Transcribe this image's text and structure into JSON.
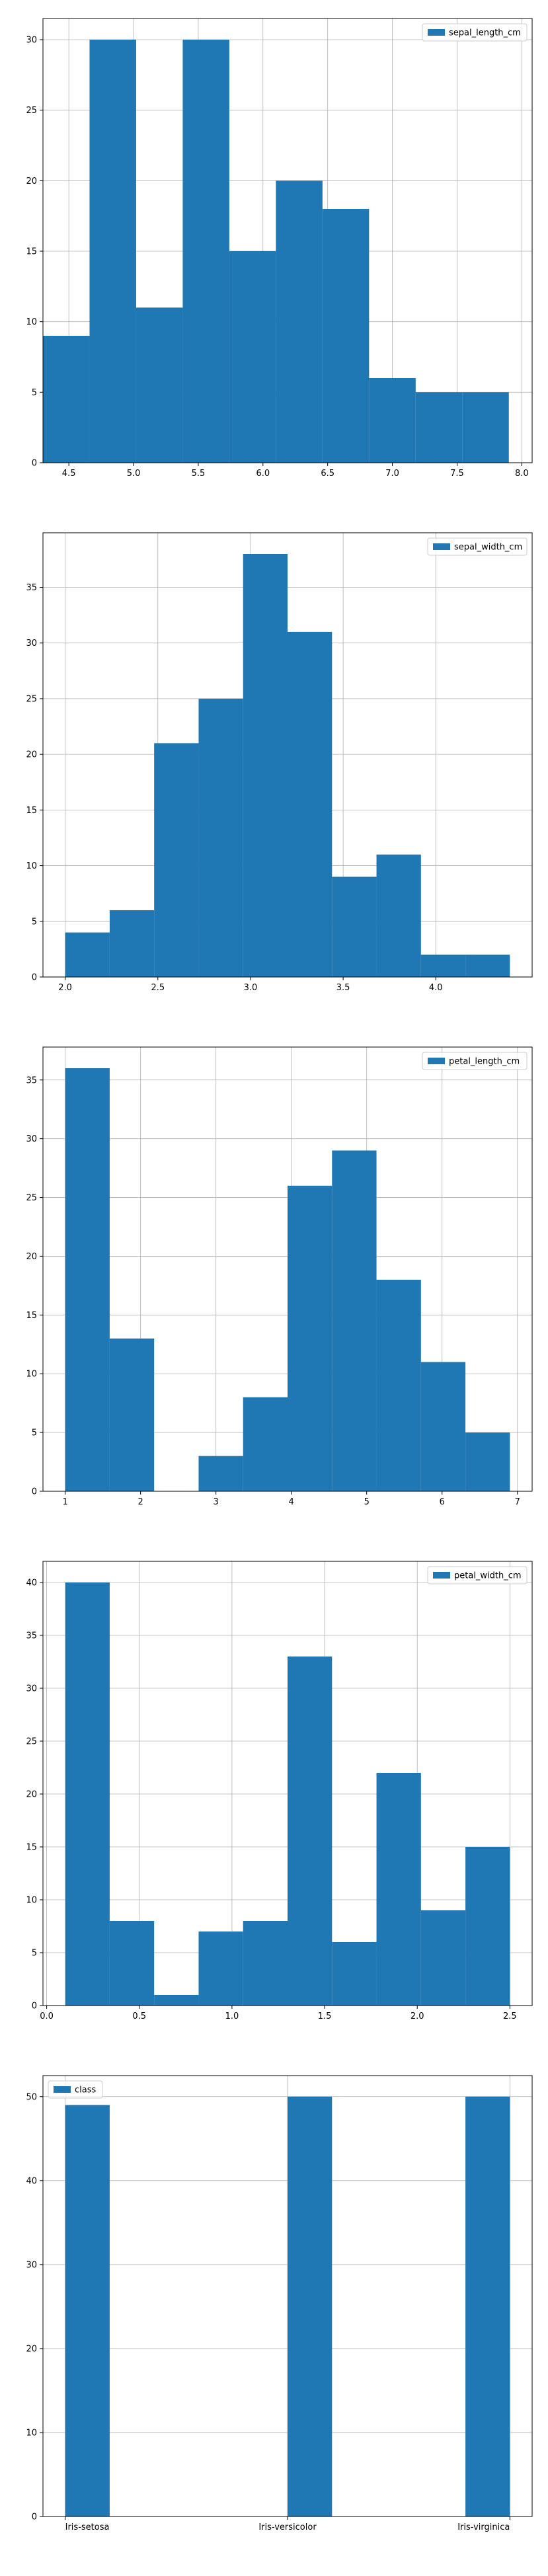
{
  "chart_data": [
    {
      "type": "bar",
      "legend": "sepal_length_cm",
      "legend_position": "upper right",
      "grid": true,
      "xlim": [
        4.3,
        8.08
      ],
      "ylim": [
        0,
        31.5
      ],
      "bin_edges": [
        4.3,
        4.66,
        5.02,
        5.38,
        5.74,
        6.1,
        6.46,
        6.82,
        7.18,
        7.54,
        7.9
      ],
      "values": [
        9,
        30,
        11,
        30,
        15,
        20,
        18,
        6,
        5,
        5
      ],
      "xticks": [
        4.5,
        5.0,
        5.5,
        6.0,
        6.5,
        7.0,
        7.5,
        8.0
      ],
      "xtick_labels": [
        "4.5",
        "5.0",
        "5.5",
        "6.0",
        "6.5",
        "7.0",
        "7.5",
        "8.0"
      ],
      "yticks": [
        0,
        5,
        10,
        15,
        20,
        25,
        30
      ],
      "ytick_labels": [
        "0",
        "5",
        "10",
        "15",
        "20",
        "25",
        "30"
      ],
      "color": "#1f77b4"
    },
    {
      "type": "bar",
      "legend": "sepal_width_cm",
      "legend_position": "upper right",
      "grid": true,
      "xlim": [
        1.88,
        4.52
      ],
      "ylim": [
        0,
        39.9
      ],
      "bin_edges": [
        2.0,
        2.24,
        2.48,
        2.72,
        2.96,
        3.2,
        3.44,
        3.68,
        3.92,
        4.16,
        4.4
      ],
      "values": [
        4,
        6,
        21,
        25,
        38,
        31,
        9,
        11,
        2,
        2
      ],
      "xticks": [
        2.0,
        2.5,
        3.0,
        3.5,
        4.0
      ],
      "xtick_labels": [
        "2.0",
        "2.5",
        "3.0",
        "3.5",
        "4.0"
      ],
      "yticks": [
        0,
        5,
        10,
        15,
        20,
        25,
        30,
        35
      ],
      "ytick_labels": [
        "0",
        "5",
        "10",
        "15",
        "20",
        "25",
        "30",
        "35"
      ],
      "color": "#1f77b4"
    },
    {
      "type": "bar",
      "legend": "petal_length_cm",
      "legend_position": "upper right",
      "grid": true,
      "xlim": [
        0.705,
        7.195
      ],
      "ylim": [
        0,
        37.8
      ],
      "bin_edges": [
        1.0,
        1.59,
        2.18,
        2.77,
        3.36,
        3.95,
        4.54,
        5.13,
        5.72,
        6.31,
        6.9
      ],
      "values": [
        36,
        13,
        0,
        3,
        8,
        26,
        29,
        18,
        11,
        5
      ],
      "xticks": [
        1,
        2,
        3,
        4,
        5,
        6,
        7
      ],
      "xtick_labels": [
        "1",
        "2",
        "3",
        "4",
        "5",
        "6",
        "7"
      ],
      "yticks": [
        0,
        5,
        10,
        15,
        20,
        25,
        30,
        35
      ],
      "ytick_labels": [
        "0",
        "5",
        "10",
        "15",
        "20",
        "25",
        "30",
        "35"
      ],
      "color": "#1f77b4"
    },
    {
      "type": "bar",
      "legend": "petal_width_cm",
      "legend_position": "upper right",
      "grid": true,
      "xlim": [
        -0.02,
        2.62
      ],
      "ylim": [
        0,
        42
      ],
      "bin_edges": [
        0.1,
        0.34,
        0.58,
        0.82,
        1.06,
        1.3,
        1.54,
        1.78,
        2.02,
        2.26,
        2.5
      ],
      "values": [
        40,
        8,
        1,
        7,
        8,
        33,
        6,
        22,
        9,
        15
      ],
      "xticks": [
        0.0,
        0.5,
        1.0,
        1.5,
        2.0,
        2.5
      ],
      "xtick_labels": [
        "0.0",
        "0.5",
        "1.0",
        "1.5",
        "2.0",
        "2.5"
      ],
      "yticks": [
        0,
        5,
        10,
        15,
        20,
        25,
        30,
        35,
        40
      ],
      "ytick_labels": [
        "0",
        "5",
        "10",
        "15",
        "20",
        "25",
        "30",
        "35",
        "40"
      ],
      "color": "#1f77b4"
    },
    {
      "type": "bar",
      "legend": "class",
      "legend_position": "upper left",
      "grid": true,
      "xlim": [
        -0.1,
        2.1
      ],
      "ylim": [
        0,
        52.5
      ],
      "bin_edges": [
        0.0,
        0.2,
        0.4,
        0.6,
        0.8,
        1.0,
        1.2,
        1.4,
        1.6,
        1.8,
        2.0
      ],
      "values": [
        49,
        0,
        0,
        0,
        0,
        50,
        0,
        0,
        0,
        50
      ],
      "xticks": [
        0,
        1,
        2
      ],
      "xtick_labels": [
        "Iris-setosa",
        "Iris-versicolor",
        "Iris-virginica"
      ],
      "yticks": [
        0,
        10,
        20,
        30,
        40,
        50
      ],
      "ytick_labels": [
        "0",
        "10",
        "20",
        "30",
        "40",
        "50"
      ],
      "color": "#1f77b4"
    }
  ]
}
